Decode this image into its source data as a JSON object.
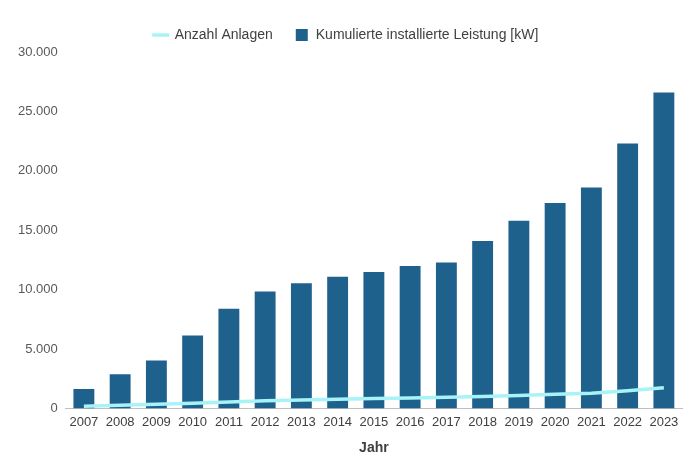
{
  "chart_data": {
    "type": "bar",
    "x_label": "Jahr",
    "categories": [
      "2007",
      "2008",
      "2009",
      "2010",
      "2011",
      "2012",
      "2013",
      "2014",
      "2015",
      "2016",
      "2017",
      "2018",
      "2019",
      "2020",
      "2021",
      "2022",
      "2023"
    ],
    "series": [
      {
        "name": "Kumulierte installierte Leistung [kW]",
        "type": "bar",
        "color": "#1f618d",
        "values": [
          1650,
          2900,
          4050,
          6150,
          8400,
          9850,
          10550,
          11100,
          11500,
          12000,
          12300,
          14100,
          15800,
          17300,
          18600,
          22300,
          26600
        ]
      },
      {
        "name": "Anzahl Anlagen",
        "type": "line",
        "color": "#a8f3f7",
        "marker": "none",
        "line_style": "solid",
        "values": [
          200,
          280,
          370,
          460,
          560,
          650,
          720,
          790,
          850,
          900,
          950,
          1020,
          1100,
          1200,
          1300,
          1500,
          1750
        ]
      }
    ],
    "ylim": [
      0,
      30000
    ],
    "yticks": [
      0,
      {
        "value": 5000,
        "label": "5.000"
      },
      {
        "value": 10000,
        "label": "10.000"
      },
      {
        "value": 15000,
        "label": "15.000"
      },
      {
        "value": 20000,
        "label": "20.000"
      },
      {
        "value": 25000,
        "label": "25.000"
      },
      {
        "value": 30000,
        "label": "30.000"
      }
    ],
    "grid": false,
    "legend": "top"
  }
}
